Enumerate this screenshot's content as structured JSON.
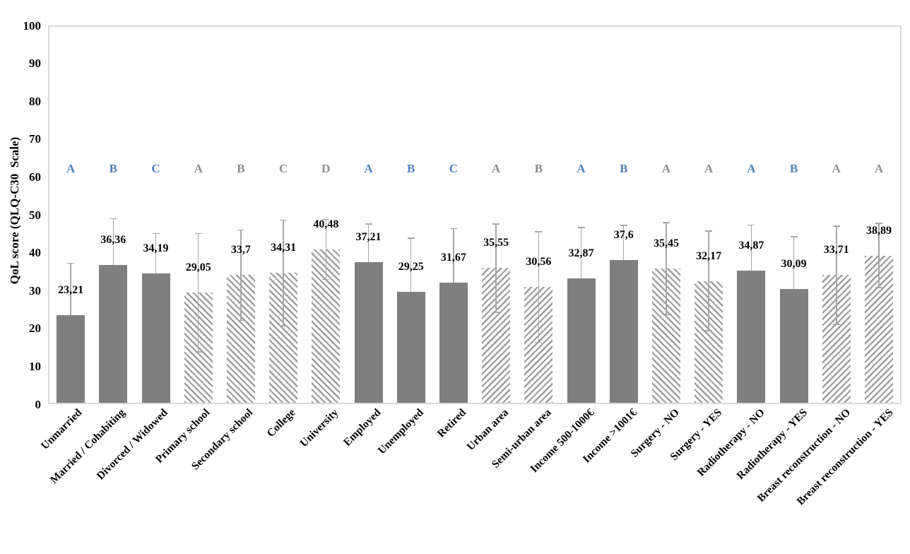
{
  "figure": {
    "background": "#ffffff"
  },
  "chart_data": {
    "type": "bar",
    "title": "",
    "xlabel": "",
    "ylabel": "QoL score (QLQ-C30  Scale)",
    "ylim": [
      0,
      100
    ],
    "yticks": [
      0,
      10,
      20,
      30,
      40,
      50,
      60,
      70,
      80,
      90,
      100
    ],
    "grid": false,
    "legend_position": "none",
    "decimal_separator": ",",
    "colors": {
      "bar_solid": "#7f7f7f",
      "hatch_stripe": "#9c9c9c",
      "error_bar": "#a6a6a6",
      "letter_blue": "#4F81BD",
      "letter_gray": "#8c8c8c",
      "frame": "#d9d9d9",
      "text": "#000000"
    },
    "letter_row_value": 62,
    "bars": [
      {
        "category": "Unmarried",
        "value": 23.21,
        "label": "23,21",
        "letter": "A",
        "letter_color": "blue",
        "fill": "solid",
        "err_sd": 13.8
      },
      {
        "category": "Married / Cohabiting",
        "value": 36.36,
        "label": "36,36",
        "letter": "B",
        "letter_color": "blue",
        "fill": "solid",
        "err_sd": 12.4
      },
      {
        "category": "Divorced / Widowed",
        "value": 34.19,
        "label": "34,19",
        "letter": "C",
        "letter_color": "blue",
        "fill": "solid",
        "err_sd": 10.6
      },
      {
        "category": "Primary school",
        "value": 29.05,
        "label": "29,05",
        "letter": "A",
        "letter_color": "gray",
        "fill": "hatch_down",
        "err_sd": 15.8
      },
      {
        "category": "Secondary school",
        "value": 33.7,
        "label": "33,7",
        "letter": "B",
        "letter_color": "gray",
        "fill": "hatch_down",
        "err_sd": 12.1
      },
      {
        "category": "College",
        "value": 34.31,
        "label": "34,31",
        "letter": "C",
        "letter_color": "gray",
        "fill": "hatch_down",
        "err_sd": 14.1
      },
      {
        "category": "University",
        "value": 40.48,
        "label": "40,48",
        "letter": "D",
        "letter_color": "gray",
        "fill": "hatch_down",
        "err_sd": 8.1
      },
      {
        "category": "Employed",
        "value": 37.21,
        "label": "37,21",
        "letter": "A",
        "letter_color": "blue",
        "fill": "solid",
        "err_sd": 10.1
      },
      {
        "category": "Unemployed",
        "value": 29.25,
        "label": "29,25",
        "letter": "B",
        "letter_color": "blue",
        "fill": "solid",
        "err_sd": 14.4
      },
      {
        "category": "Retired",
        "value": 31.67,
        "label": "31,67",
        "letter": "C",
        "letter_color": "blue",
        "fill": "solid",
        "err_sd": 14.5
      },
      {
        "category": "Urban area",
        "value": 35.55,
        "label": "35,55",
        "letter": "A",
        "letter_color": "gray",
        "fill": "hatch_up",
        "err_sd": 11.8
      },
      {
        "category": "Semi-urban area",
        "value": 30.56,
        "label": "30,56",
        "letter": "B",
        "letter_color": "gray",
        "fill": "hatch_up",
        "err_sd": 14.7
      },
      {
        "category": "Income 500-1000€",
        "value": 32.87,
        "label": "32,87",
        "letter": "A",
        "letter_color": "blue",
        "fill": "solid",
        "err_sd": 13.5
      },
      {
        "category": "Income >1001€",
        "value": 37.6,
        "label": "37,6",
        "letter": "B",
        "letter_color": "blue",
        "fill": "solid",
        "err_sd": 9.4
      },
      {
        "category": "Surgery - NO",
        "value": 35.45,
        "label": "35,45",
        "letter": "A",
        "letter_color": "gray",
        "fill": "hatch_down",
        "err_sd": 12.3
      },
      {
        "category": "Surgery - YES",
        "value": 32.17,
        "label": "32,17",
        "letter": "A",
        "letter_color": "gray",
        "fill": "hatch_down",
        "err_sd": 13.3
      },
      {
        "category": "Radiotherapy - NO",
        "value": 34.87,
        "label": "34,87",
        "letter": "A",
        "letter_color": "blue",
        "fill": "solid",
        "err_sd": 12.2
      },
      {
        "category": "Radiotherapy - YES",
        "value": 30.09,
        "label": "30,09",
        "letter": "B",
        "letter_color": "blue",
        "fill": "solid",
        "err_sd": 13.9
      },
      {
        "category": "Breast reconstruction - NO",
        "value": 33.71,
        "label": "33,71",
        "letter": "A",
        "letter_color": "gray",
        "fill": "hatch_up",
        "err_sd": 13.1
      },
      {
        "category": "Breast reconstruction - YES",
        "value": 38.89,
        "label": "38,89",
        "letter": "A",
        "letter_color": "gray",
        "fill": "hatch_up",
        "err_sd": 8.6
      }
    ]
  }
}
